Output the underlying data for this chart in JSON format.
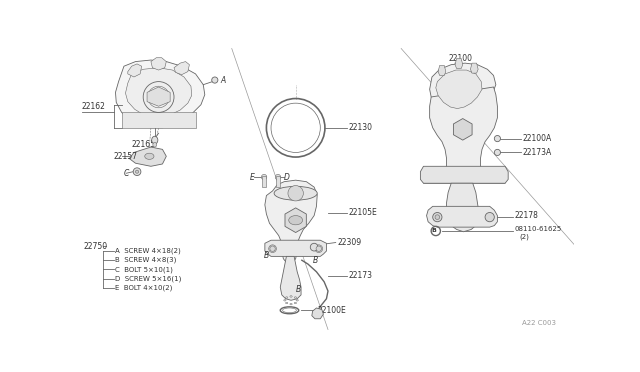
{
  "bg_color": "#ffffff",
  "fig_width": 6.4,
  "fig_height": 3.72,
  "dpi": 100,
  "ref_code": "A22 C003",
  "parts_legend": [
    [
      "A",
      "SCREW 4×18(2)"
    ],
    [
      "B",
      "SCREW 4×8(3)"
    ],
    [
      "C",
      "BOLT 5×10(1)"
    ],
    [
      "D",
      "SCREW 5×16(1)"
    ],
    [
      "E",
      "BOLT 4×10(2)"
    ]
  ],
  "gray": "#666666",
  "lgray": "#999999",
  "text_color": "#333333",
  "lw_main": 0.6,
  "lw_thin": 0.4,
  "fs_label": 5.5,
  "fs_small": 5.0
}
